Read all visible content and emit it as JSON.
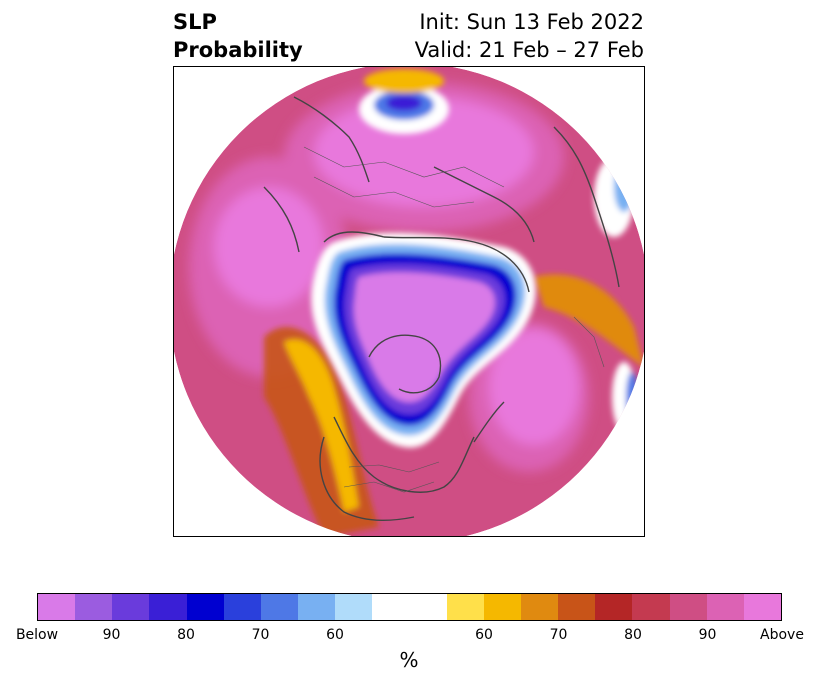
{
  "title": {
    "left_line1": "SLP",
    "left_line2": "Probability",
    "init": "Init: Sun 13 Feb 2022",
    "valid": "Valid: 21 Feb – 27 Feb"
  },
  "colorbar": {
    "unit": "%",
    "segments": [
      {
        "color": "#d97ae8"
      },
      {
        "color": "#9b5ce0"
      },
      {
        "color": "#6a3bdc"
      },
      {
        "color": "#3a1fd6"
      },
      {
        "color": "#0000d0"
      },
      {
        "color": "#2a40dc"
      },
      {
        "color": "#4e78e6"
      },
      {
        "color": "#78b0f2"
      },
      {
        "color": "#b0dcfa"
      },
      {
        "color": "#ffffff"
      },
      {
        "color": "#ffe04a"
      },
      {
        "color": "#f5b800"
      },
      {
        "color": "#e08a10"
      },
      {
        "color": "#c85418"
      },
      {
        "color": "#b42626"
      },
      {
        "color": "#c43a50"
      },
      {
        "color": "#cf4e84"
      },
      {
        "color": "#dc62b4"
      },
      {
        "color": "#e878dc"
      }
    ],
    "ticks": [
      "Below",
      "90",
      "80",
      "70",
      "60",
      "",
      "60",
      "70",
      "80",
      "90",
      "Above"
    ]
  },
  "map": {
    "projection": "north-polar-stereographic",
    "background_color": "#cf4e84"
  }
}
